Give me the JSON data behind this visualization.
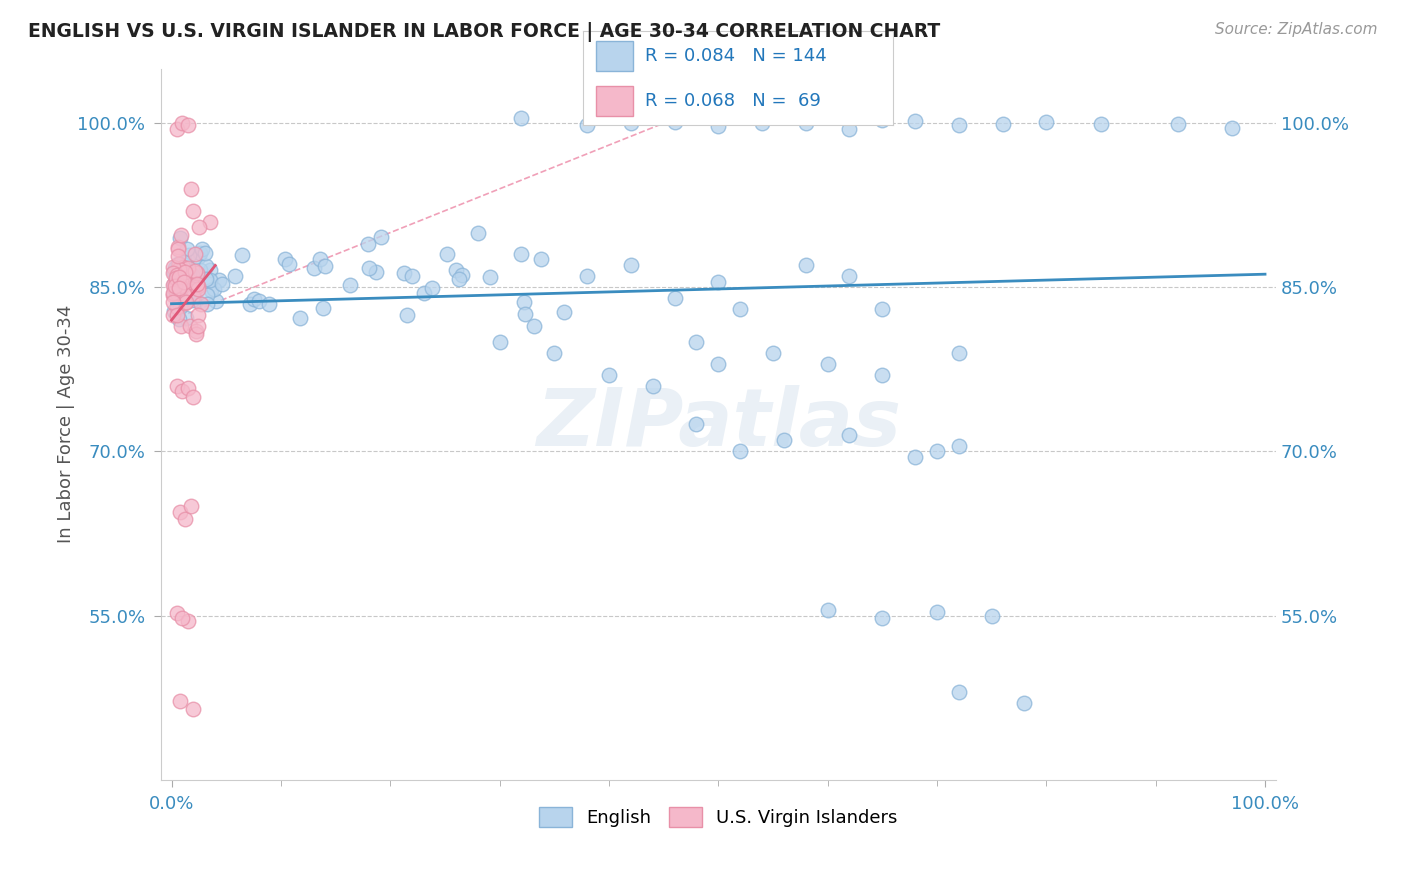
{
  "title": "ENGLISH VS U.S. VIRGIN ISLANDER IN LABOR FORCE | AGE 30-34 CORRELATION CHART",
  "source": "Source: ZipAtlas.com",
  "ylabel": "In Labor Force | Age 30-34",
  "english_R": 0.084,
  "english_N": 144,
  "vi_R": 0.068,
  "vi_N": 69,
  "english_color_face": "#b8d4ed",
  "english_color_edge": "#8ab4d8",
  "vi_color_face": "#f5b8ca",
  "vi_color_edge": "#e890a8",
  "english_trend_color": "#3a8cbf",
  "vi_trend_color": "#e05878",
  "vi_dash_color": "#f0a0b8",
  "watermark": "ZIPatlas",
  "legend_english": "English",
  "legend_vi": "U.S. Virgin Islanders",
  "background_color": "#ffffff",
  "grid_color": "#c8c8c8",
  "yticks": [
    0.55,
    0.7,
    0.85,
    1.0
  ],
  "ytick_labels": [
    "55.0%",
    "70.0%",
    "85.0%",
    "100.0%"
  ],
  "xlim": [
    0.0,
    1.0
  ],
  "ylim": [
    0.4,
    1.05
  ]
}
